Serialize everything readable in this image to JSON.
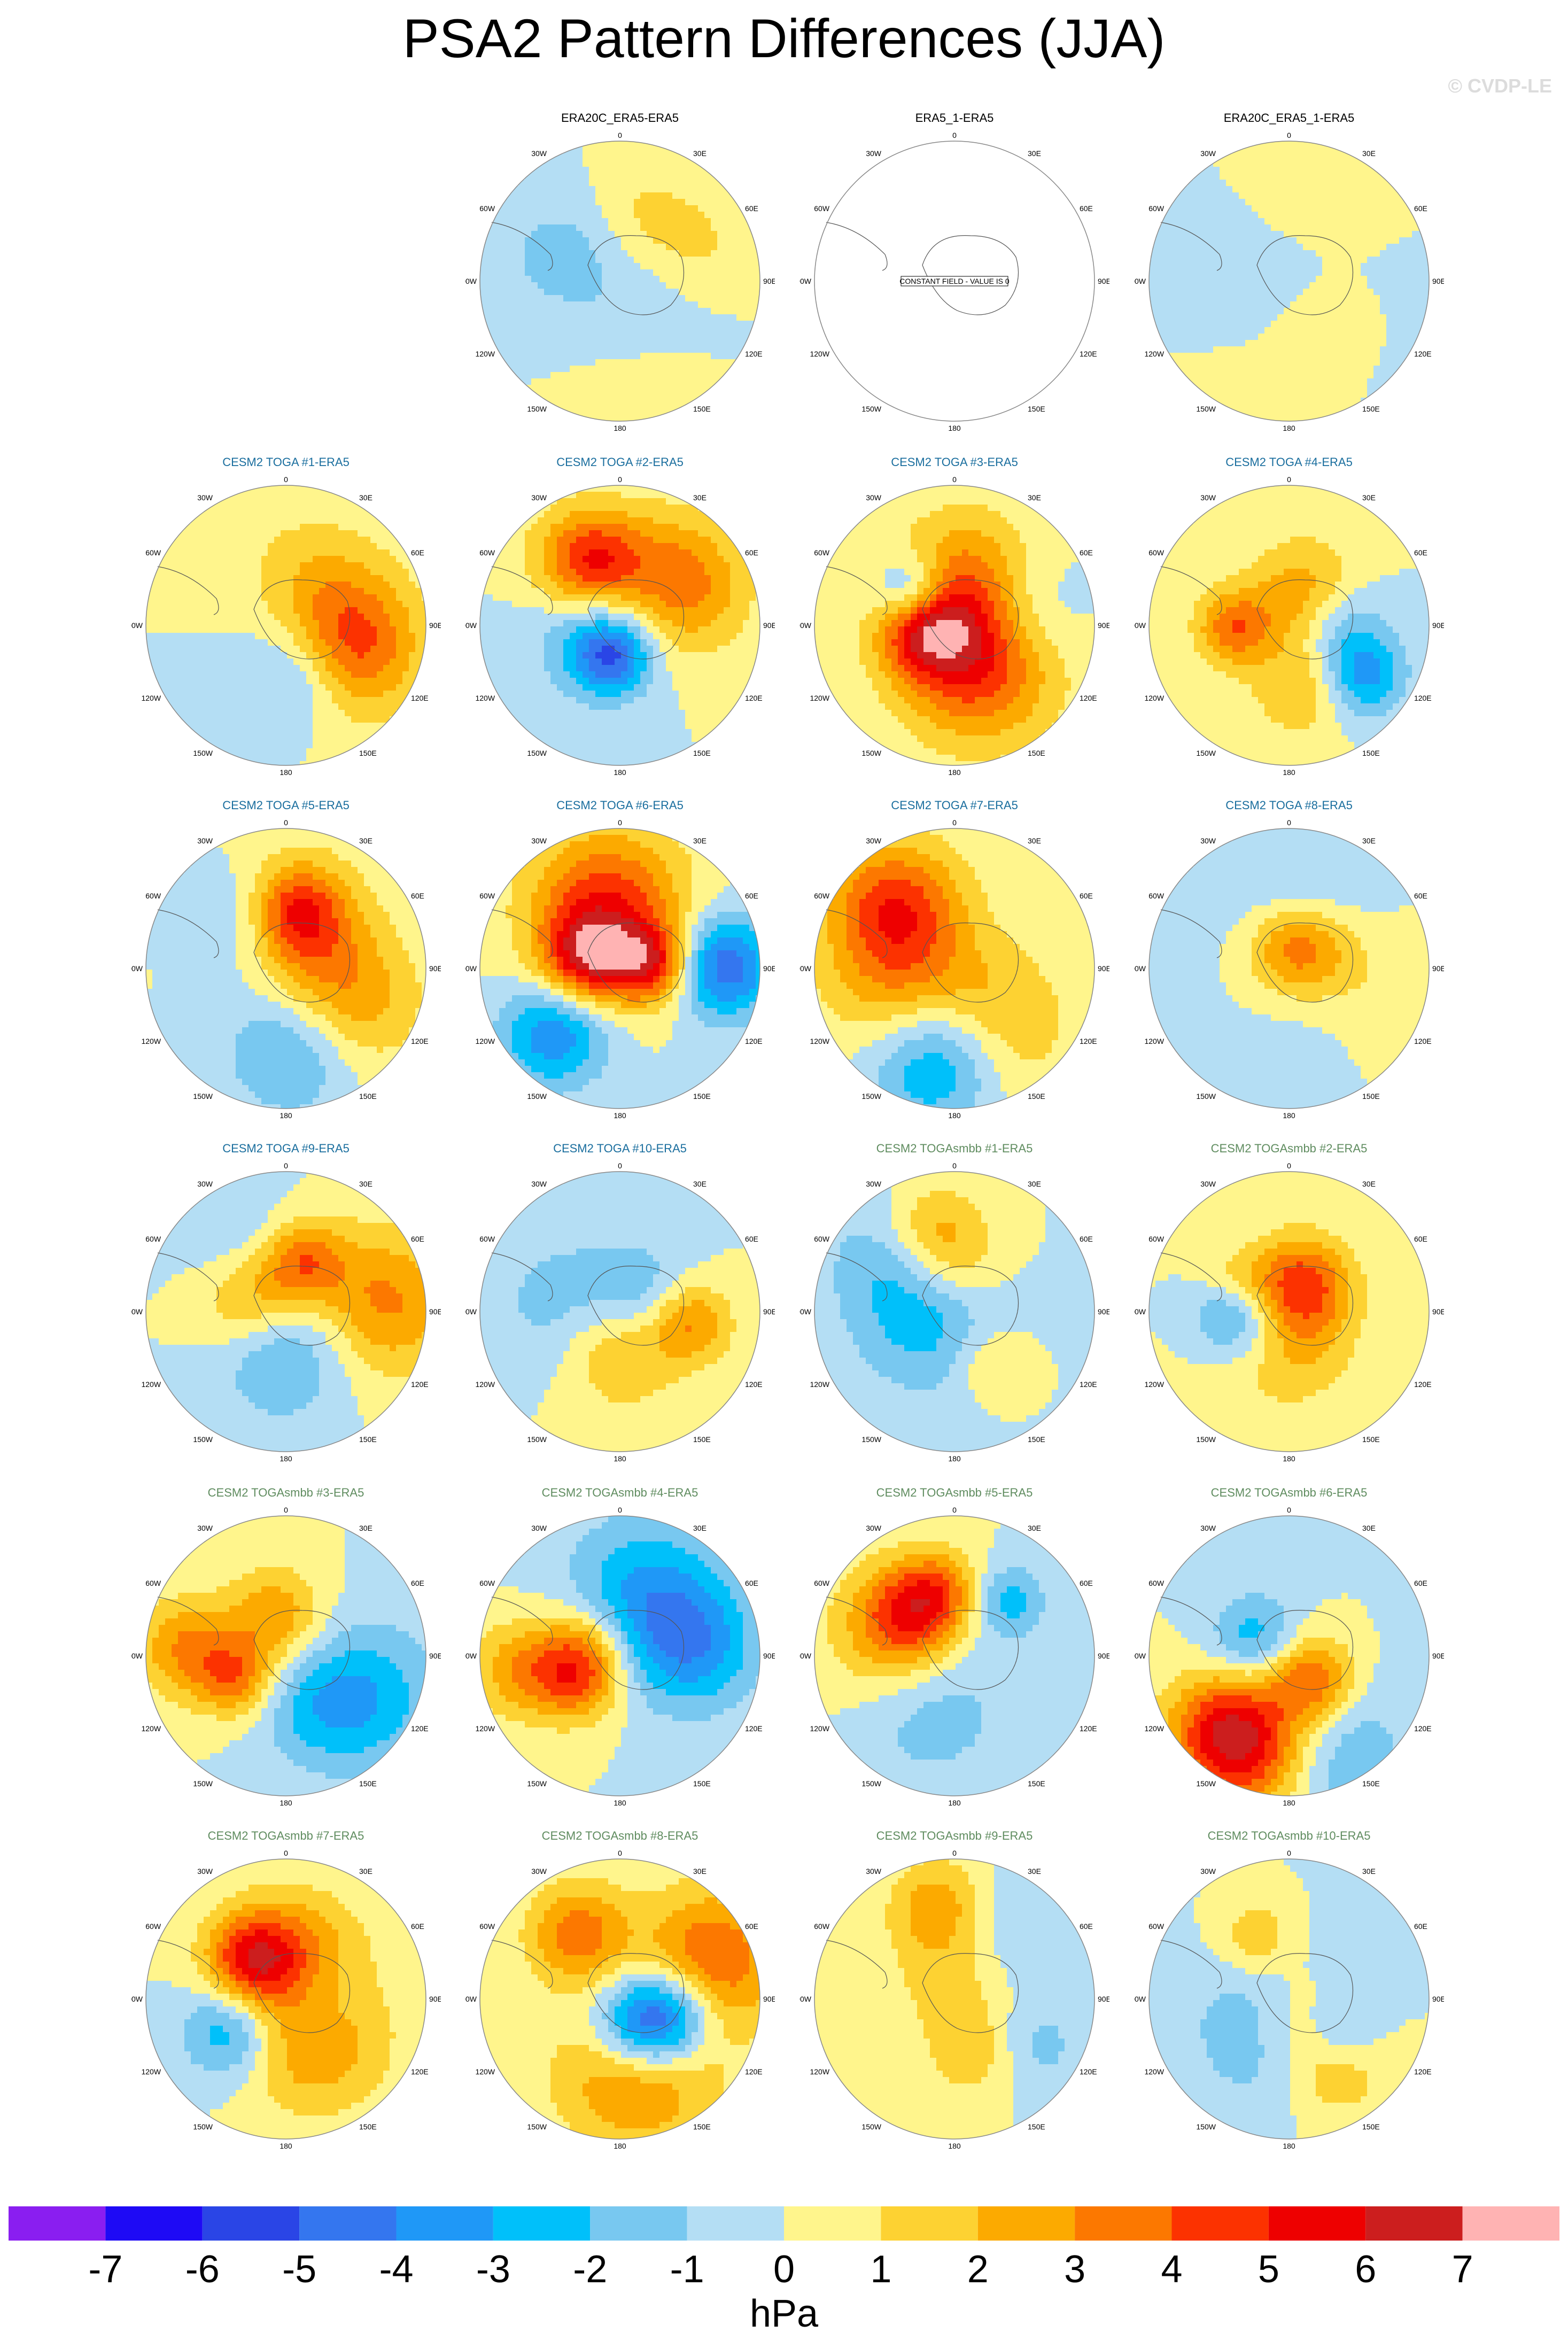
{
  "figure": {
    "title": "PSA2 Pattern Differences (JJA)",
    "credit": "© CVDP-LE"
  },
  "map_labels": {
    "top": "0",
    "bottom": "180",
    "upper_left": "30W",
    "upper_right": "30E",
    "left_high": "60W",
    "right_high": "60E",
    "left_mid": "90W",
    "right_mid": "90E",
    "left_low": "120W",
    "right_low": "120E",
    "lower_left": "150W",
    "lower_right": "150E",
    "constant_note": "CONSTANT FIELD - VALUE IS 0"
  },
  "chart_data": {
    "type": "heatmap",
    "title": "PSA2 Pattern Differences (JJA)",
    "units": "hPa",
    "colorbar": {
      "ticks": [
        "-7",
        "-6",
        "-5",
        "-4",
        "-3",
        "-2",
        "-1",
        "0",
        "1",
        "2",
        "3",
        "4",
        "5",
        "6",
        "7"
      ],
      "colors": [
        "#8a1ef0",
        "#1e0af5",
        "#2a45e6",
        "#3476ef",
        "#1f98f7",
        "#00c0fa",
        "#78c8f0",
        "#b4def4",
        "#fff58c",
        "#fdd232",
        "#fcaa00",
        "#fc7800",
        "#fc3200",
        "#ee0000",
        "#cc1e1e",
        "#ffb3b3"
      ],
      "range": [
        -7,
        7
      ],
      "interval": 1
    },
    "panels": [
      {
        "title": "ERA20C_ERA5-ERA5",
        "group": "obs",
        "constant": false,
        "seed": 1,
        "amp": 1.6
      },
      {
        "title": "ERA5_1-ERA5",
        "group": "obs",
        "constant": true,
        "seed": 2,
        "amp": 0
      },
      {
        "title": "ERA20C_ERA5_1-ERA5",
        "group": "obs",
        "constant": false,
        "seed": 3,
        "amp": 1.6
      },
      {
        "title": "CESM2 TOGA #1-ERA5",
        "group": "toga",
        "constant": false,
        "seed": 4,
        "amp": 5.2
      },
      {
        "title": "CESM2 TOGA #2-ERA5",
        "group": "toga",
        "constant": false,
        "seed": 5,
        "amp": 4.6
      },
      {
        "title": "CESM2 TOGA #3-ERA5",
        "group": "toga",
        "constant": false,
        "seed": 6,
        "amp": 5.0
      },
      {
        "title": "CESM2 TOGA #4-ERA5",
        "group": "toga",
        "constant": false,
        "seed": 7,
        "amp": 3.6
      },
      {
        "title": "CESM2 TOGA #5-ERA5",
        "group": "toga",
        "constant": false,
        "seed": 8,
        "amp": 5.0
      },
      {
        "title": "CESM2 TOGA #6-ERA5",
        "group": "toga",
        "constant": false,
        "seed": 9,
        "amp": 5.0
      },
      {
        "title": "CESM2 TOGA #7-ERA5",
        "group": "toga",
        "constant": false,
        "seed": 10,
        "amp": 4.6
      },
      {
        "title": "CESM2 TOGA #8-ERA5",
        "group": "toga",
        "constant": false,
        "seed": 11,
        "amp": 2.8
      },
      {
        "title": "CESM2 TOGA #9-ERA5",
        "group": "toga",
        "constant": false,
        "seed": 12,
        "amp": 3.8
      },
      {
        "title": "CESM2 TOGA #10-ERA5",
        "group": "toga",
        "constant": false,
        "seed": 13,
        "amp": 3.4
      },
      {
        "title": "CESM2 TOGAsmbb #1-ERA5",
        "group": "smbb",
        "constant": false,
        "seed": 14,
        "amp": 2.6
      },
      {
        "title": "CESM2 TOGAsmbb #2-ERA5",
        "group": "smbb",
        "constant": false,
        "seed": 15,
        "amp": 4.4
      },
      {
        "title": "CESM2 TOGAsmbb #3-ERA5",
        "group": "smbb",
        "constant": false,
        "seed": 16,
        "amp": 3.6
      },
      {
        "title": "CESM2 TOGAsmbb #4-ERA5",
        "group": "smbb",
        "constant": false,
        "seed": 17,
        "amp": 3.2
      },
      {
        "title": "CESM2 TOGAsmbb #5-ERA5",
        "group": "smbb",
        "constant": false,
        "seed": 18,
        "amp": 4.0
      },
      {
        "title": "CESM2 TOGAsmbb #6-ERA5",
        "group": "smbb",
        "constant": false,
        "seed": 19,
        "amp": 4.6
      },
      {
        "title": "CESM2 TOGAsmbb #7-ERA5",
        "group": "smbb",
        "constant": false,
        "seed": 20,
        "amp": 4.4
      },
      {
        "title": "CESM2 TOGAsmbb #8-ERA5",
        "group": "smbb",
        "constant": false,
        "seed": 21,
        "amp": 5.0
      },
      {
        "title": "CESM2 TOGAsmbb #9-ERA5",
        "group": "smbb",
        "constant": false,
        "seed": 22,
        "amp": 2.8
      },
      {
        "title": "CESM2 TOGAsmbb #10-ERA5",
        "group": "smbb",
        "constant": false,
        "seed": 23,
        "amp": 2.8
      }
    ],
    "title_colors": {
      "obs": "#000000",
      "toga": "#1a6e9e",
      "smbb": "#5f8c5f"
    }
  }
}
